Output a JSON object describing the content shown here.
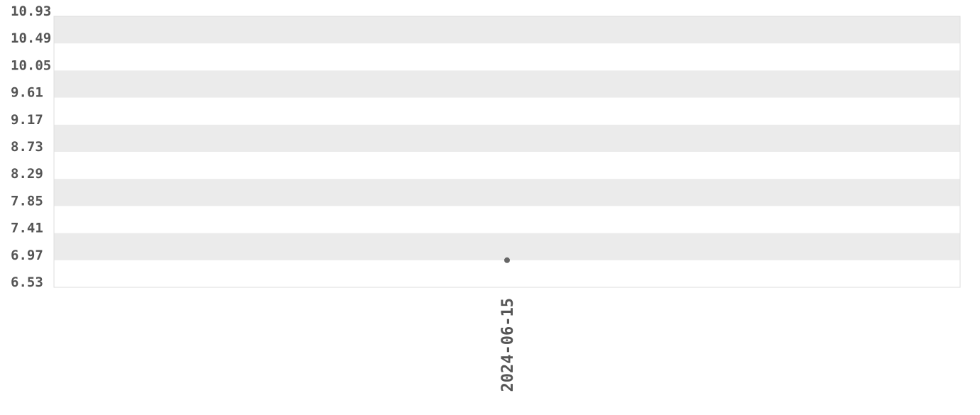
{
  "chart_data": {
    "type": "scatter",
    "title": "",
    "xlabel": "",
    "ylabel": "",
    "x_categories": [
      "2024-06-15"
    ],
    "points": [
      {
        "x": "2024-06-15",
        "y": 6.97
      }
    ],
    "y_ticks": [
      "10.93",
      "10.49",
      "10.05",
      "9.61",
      "9.17",
      "8.73",
      "8.29",
      "7.85",
      "7.41",
      "6.97",
      "6.53"
    ],
    "ylim": [
      6.53,
      10.93
    ],
    "grid": "alternating horizontal bands",
    "colors": {
      "band": "#ebebeb",
      "point": "#666666",
      "text": "#555555",
      "border": "#dddddd"
    }
  }
}
